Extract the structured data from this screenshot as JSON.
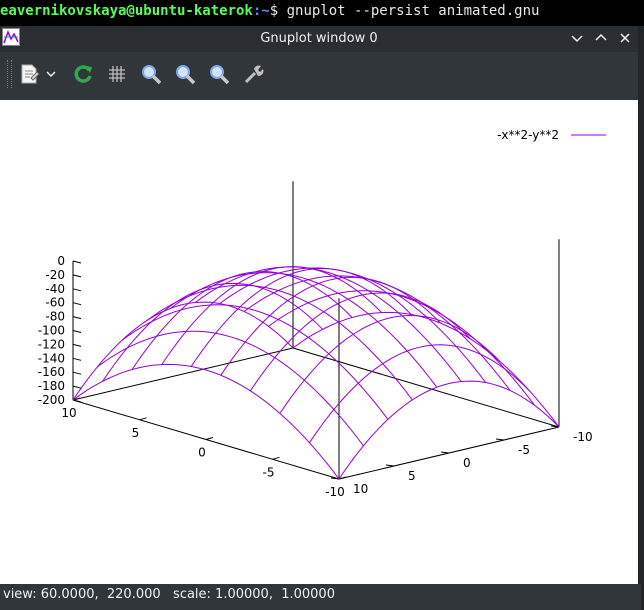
{
  "terminal": {
    "user_host": "eavernikovskaya@ubuntu-katerok",
    "path": ":~",
    "prompt": "$ ",
    "command": "gnuplot --persist animated.gnu"
  },
  "window": {
    "title": "Gnuplot window 0",
    "icons": [
      "gnuplot-app-icon",
      "minimize-icon",
      "maximize-icon",
      "close-icon"
    ]
  },
  "toolbar": {
    "buttons": [
      {
        "name": "export-icon"
      },
      {
        "name": "dropdown-icon"
      },
      {
        "name": "replot-icon"
      },
      {
        "name": "grid-icon"
      },
      {
        "name": "zoom-previous-icon"
      },
      {
        "name": "zoom-next-icon"
      },
      {
        "name": "autoscale-icon"
      },
      {
        "name": "settings-icon"
      }
    ]
  },
  "chart_data": {
    "type": "surface",
    "function": "-x**2-y**2",
    "legend": "-x**2-y**2",
    "legend_position": "top-right",
    "x_range": [
      -10,
      10
    ],
    "y_range": [
      -10,
      10
    ],
    "z_range": [
      -200,
      0
    ],
    "x_ticks": [
      "10",
      "5",
      "0",
      "-5",
      "-10"
    ],
    "y_ticks": [
      "-10",
      "-5",
      "0",
      "5",
      "10"
    ],
    "z_ticks": [
      "0",
      "-20",
      "-40",
      "-60",
      "-80",
      "-100",
      "-120",
      "-140",
      "-160",
      "-180",
      "-200"
    ],
    "isosamples": 10,
    "color": "#9400d3",
    "view": [
      60,
      220
    ]
  },
  "status": {
    "text": "view: 60.0000,  220.000   scale: 1.00000,  1.00000"
  }
}
